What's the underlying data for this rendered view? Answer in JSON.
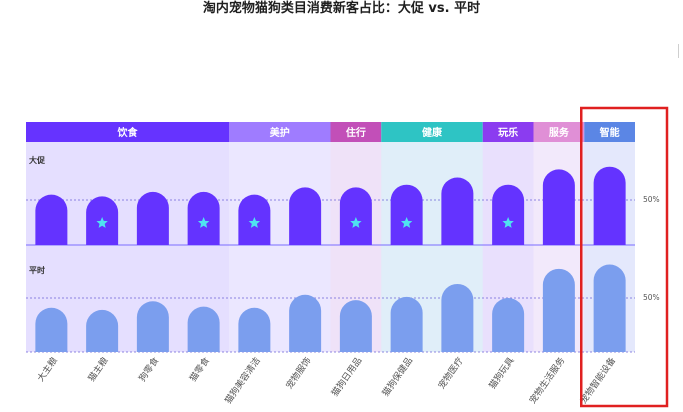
{
  "title": "淘内宠物猫狗类目消费新客占比：大促 vs. 平时",
  "chart_data": {
    "type": "bar",
    "title": "淘内宠物猫狗类目消费新客占比：大促 vs. 平时",
    "categories": [
      "大主粮",
      "猫主粮",
      "狗零食",
      "猫零食",
      "猫狗美容清洁",
      "宠物服饰",
      "猫狗日用品",
      "猫狗保健品",
      "宠物医疗",
      "猫狗玩具",
      "宠物生活服务",
      "宠物智能设备"
    ],
    "groups": [
      {
        "label": "饮食",
        "start": 0,
        "end": 3,
        "color": "#6633ff"
      },
      {
        "label": "美护",
        "start": 4,
        "end": 5,
        "color": "#9f7cff"
      },
      {
        "label": "住行",
        "start": 6,
        "end": 6,
        "color": "#c24fb8"
      },
      {
        "label": "健康",
        "start": 7,
        "end": 8,
        "color": "#2ec4c4"
      },
      {
        "label": "玩乐",
        "start": 9,
        "end": 9,
        "color": "#8b3cf0"
      },
      {
        "label": "服务",
        "start": 10,
        "end": 10,
        "color": "#e08fd6"
      },
      {
        "label": "智能",
        "start": 11,
        "end": 11,
        "color": "#5b86e5"
      }
    ],
    "panels": [
      {
        "label": "大促",
        "reference_label": "50%",
        "reference_value": 50,
        "bar_color": "#6433ff",
        "values": [
          56,
          54,
          59,
          59,
          56,
          64,
          64,
          67,
          75,
          67,
          84,
          87
        ],
        "starred": [
          1,
          3,
          4,
          6,
          7,
          9
        ],
        "star_color": "#4fe3f0"
      },
      {
        "label": "平时",
        "reference_label": "50%",
        "reference_value": 50,
        "bar_color": "#7b9eee",
        "values": [
          41,
          39,
          47,
          42,
          41,
          53,
          48,
          51,
          63,
          50,
          77,
          81
        ],
        "starred": [],
        "star_color": "#4fe3f0"
      }
    ],
    "ylim": [
      0,
      100
    ],
    "highlight": {
      "category": "宠物智能设备",
      "color": "#e02020"
    }
  }
}
